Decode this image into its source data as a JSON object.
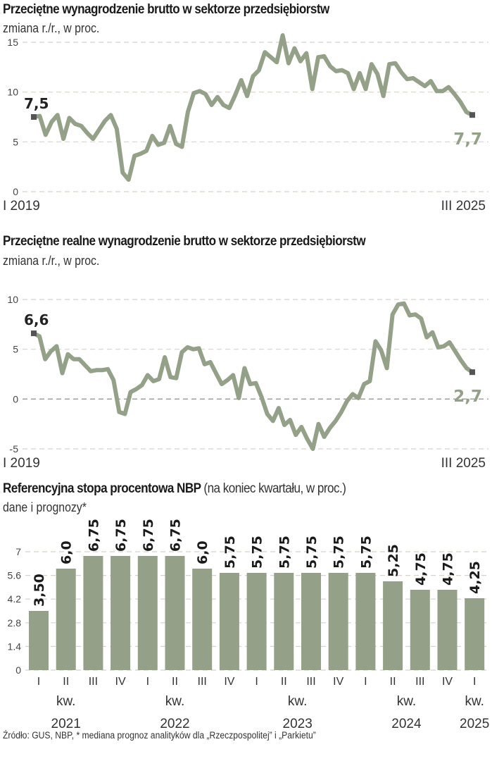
{
  "footer": {
    "source": "Źródło: GUS, NBP, * mediana prognoz analityków dla „Rzeczpospolitej” i „Parkietu”"
  },
  "colors": {
    "series": "#94a087",
    "marker": "#555555",
    "grid": "#d8d2cc"
  },
  "chart_data": [
    {
      "type": "line",
      "title": "Przeciętne wynagrodzenie brutto w sektorze przedsiębiorstw",
      "subtitle": "zmiana r./r., w proc.",
      "xlabel": "",
      "ylabel": "",
      "x_start_label": "I 2019",
      "x_end_label": "III 2025",
      "ylim": [
        0,
        15
      ],
      "yticks": [
        0,
        5,
        10,
        15
      ],
      "grid": true,
      "start_label": "7,5",
      "end_label": "7,7",
      "series": [
        {
          "name": "Przeciętne wynagrodzenie brutto",
          "values": [
            7.5,
            7.6,
            5.7,
            7.0,
            7.7,
            5.3,
            7.4,
            6.8,
            6.6,
            5.9,
            5.3,
            6.2,
            7.1,
            7.7,
            6.3,
            1.9,
            1.2,
            3.6,
            3.8,
            4.1,
            5.6,
            4.7,
            4.9,
            6.6,
            4.8,
            4.5,
            8.0,
            9.9,
            10.1,
            9.8,
            8.7,
            9.5,
            8.7,
            8.4,
            9.7,
            11.2,
            9.6,
            11.6,
            12.2,
            14.0,
            13.5,
            13.0,
            15.7,
            12.9,
            14.4,
            13.1,
            13.9,
            10.3,
            13.5,
            13.6,
            12.6,
            12.1,
            12.2,
            11.9,
            10.3,
            11.9,
            10.3,
            12.8,
            11.8,
            9.6,
            12.8,
            12.9,
            12.0,
            11.3,
            11.4,
            11.0,
            10.6,
            11.1,
            10.1,
            10.1,
            10.5,
            9.8,
            9.0,
            8.0,
            7.7
          ]
        }
      ]
    },
    {
      "type": "line",
      "title": "Przeciętne realne wynagrodzenie brutto w sektorze przedsiębiorstw",
      "subtitle": "zmiana r./r., w proc.",
      "xlabel": "",
      "ylabel": "",
      "x_start_label": "I 2019",
      "x_end_label": "III 2025",
      "ylim": [
        -5,
        10
      ],
      "yticks": [
        -5,
        0,
        5,
        10
      ],
      "grid": true,
      "start_label": "6,6",
      "end_label": "2,7",
      "series": [
        {
          "name": "Przeciętne realne wynagrodzenie brutto",
          "values": [
            6.6,
            6.3,
            4.0,
            4.8,
            5.3,
            2.6,
            4.5,
            4.0,
            4.0,
            3.4,
            2.8,
            2.9,
            2.9,
            3.0,
            1.9,
            -1.3,
            -1.5,
            0.7,
            1.0,
            1.4,
            2.4,
            1.8,
            2.0,
            4.2,
            2.2,
            2.1,
            4.7,
            5.2,
            5.0,
            5.1,
            3.5,
            3.7,
            2.6,
            1.5,
            1.9,
            2.4,
            0.1,
            3.1,
            1.5,
            1.6,
            0.2,
            -1.5,
            -2.2,
            -0.9,
            -2.6,
            -2.1,
            -3.6,
            -2.8,
            -4.0,
            -5.0,
            -2.5,
            -3.8,
            -2.9,
            -2.2,
            -1.3,
            -0.2,
            0.5,
            0.1,
            1.5,
            1.8,
            5.8,
            4.9,
            3.1,
            8.5,
            9.5,
            9.6,
            8.4,
            8.5,
            8.1,
            6.2,
            6.7,
            5.2,
            5.3,
            5.7,
            4.8,
            3.9,
            3.1,
            2.7
          ]
        }
      ]
    },
    {
      "type": "bar",
      "title": "Referencyjna stopa procentowa NBP",
      "title_suffix": "(na koniec kwartału, w proc.)",
      "subtitle": "dane i prognozy*",
      "xlabel": "",
      "ylabel": "",
      "ylim": [
        0,
        7
      ],
      "yticks": [
        "0",
        "1.4",
        "2.8",
        "4.2",
        "5.6",
        "7"
      ],
      "grid": true,
      "categories": [
        "I",
        "II",
        "III",
        "IV",
        "I",
        "II",
        "III",
        "IV",
        "I",
        "II",
        "III",
        "IV",
        "I",
        "II",
        "III",
        "IV",
        "I"
      ],
      "values": [
        3.5,
        6.0,
        6.75,
        6.75,
        6.75,
        6.75,
        6.0,
        5.75,
        5.75,
        5.75,
        5.75,
        5.75,
        5.75,
        5.25,
        4.75,
        4.75,
        4.25
      ],
      "value_labels": [
        "3,50",
        "6,0",
        "6,75",
        "6,75",
        "6,75",
        "6,75",
        "6,0",
        "5,75",
        "5,75",
        "5,75",
        "5,75",
        "5,75",
        "5,75",
        "5,25",
        "4,75",
        "4,75",
        "4,25"
      ],
      "quarter_word": "kw.",
      "year_groups": [
        {
          "year": "2021",
          "center_index": 1
        },
        {
          "year": "2022",
          "center_index": 5
        },
        {
          "year": "2023",
          "center_index": 9.5
        },
        {
          "year": "2024",
          "center_index": 13.5
        },
        {
          "year": "2025",
          "center_index": 16
        }
      ]
    }
  ]
}
